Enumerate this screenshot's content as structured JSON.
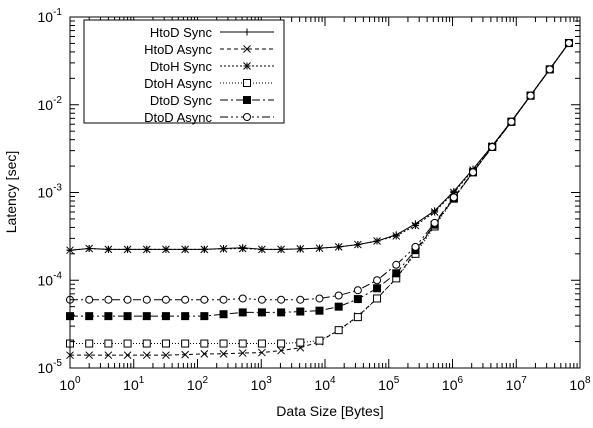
{
  "chart_data": {
    "type": "line",
    "xlabel": "Data Size [Bytes]",
    "ylabel": "Latency [sec]",
    "x_scale": "log",
    "y_scale": "log",
    "xlim": [
      1,
      100000000
    ],
    "ylim": [
      1e-05,
      0.1
    ],
    "grid": false,
    "legend_position": "top-left",
    "x_ticks": [
      {
        "value": 1,
        "base": "10",
        "exp": "0"
      },
      {
        "value": 10,
        "base": "10",
        "exp": "1"
      },
      {
        "value": 100,
        "base": "10",
        "exp": "2"
      },
      {
        "value": 1000,
        "base": "10",
        "exp": "3"
      },
      {
        "value": 10000,
        "base": "10",
        "exp": "4"
      },
      {
        "value": 100000,
        "base": "10",
        "exp": "5"
      },
      {
        "value": 1000000,
        "base": "10",
        "exp": "6"
      },
      {
        "value": 10000000,
        "base": "10",
        "exp": "7"
      },
      {
        "value": 100000000,
        "base": "10",
        "exp": "8"
      }
    ],
    "y_ticks": [
      {
        "value": 1e-05,
        "base": "10",
        "exp": "-5"
      },
      {
        "value": 0.0001,
        "base": "10",
        "exp": "-4"
      },
      {
        "value": 0.001,
        "base": "10",
        "exp": "-3"
      },
      {
        "value": 0.01,
        "base": "10",
        "exp": "-2"
      },
      {
        "value": 0.1,
        "base": "10",
        "exp": "-1"
      }
    ],
    "x": [
      1,
      2,
      4,
      8,
      16,
      32,
      64,
      128,
      256,
      512,
      1024,
      2048,
      4096,
      8192,
      16384,
      32768,
      65536,
      131072,
      262144,
      524288,
      1048576,
      2097152,
      4194304,
      8388608,
      16777216,
      33554432,
      67108864
    ],
    "series": [
      {
        "name": "HtoD Sync",
        "marker": "plus",
        "dash": "",
        "values": [
          0.00022,
          0.00023,
          0.000225,
          0.000225,
          0.000225,
          0.000225,
          0.000225,
          0.000225,
          0.00023,
          0.000235,
          0.000225,
          0.000225,
          0.000228,
          0.000232,
          0.00024,
          0.000255,
          0.00028,
          0.00033,
          0.00044,
          0.00062,
          0.00103,
          0.00185,
          0.0034,
          0.0065,
          0.0128,
          0.0255,
          0.051
        ]
      },
      {
        "name": "HtoD Async",
        "marker": "cross",
        "dash": "4,3",
        "values": [
          1.4e-05,
          1.4e-05,
          1.4e-05,
          1.4e-05,
          1.4e-05,
          1.4e-05,
          1.42e-05,
          1.45e-05,
          1.45e-05,
          1.48e-05,
          1.5e-05,
          1.58e-05,
          1.7e-05,
          2e-05,
          2.7e-05,
          3.9e-05,
          6.2e-05,
          0.000105,
          0.00021,
          0.00043,
          0.00087,
          0.0017,
          0.0033,
          0.0064,
          0.0127,
          0.0253,
          0.0505
        ]
      },
      {
        "name": "DtoH Sync",
        "marker": "star",
        "dash": "2,2",
        "values": [
          0.00022,
          0.00023,
          0.000225,
          0.000225,
          0.000225,
          0.000225,
          0.000225,
          0.000225,
          0.000228,
          0.00023,
          0.000225,
          0.000225,
          0.000228,
          0.000232,
          0.00024,
          0.000255,
          0.00028,
          0.00032,
          0.00042,
          0.0006,
          0.001,
          0.0018,
          0.0034,
          0.0065,
          0.0128,
          0.0255,
          0.051
        ]
      },
      {
        "name": "DtoH Async",
        "marker": "square-open",
        "dash": "1,2",
        "values": [
          1.9e-05,
          1.9e-05,
          1.9e-05,
          1.9e-05,
          1.9e-05,
          1.9e-05,
          1.9e-05,
          1.9e-05,
          1.9e-05,
          1.9e-05,
          1.9e-05,
          1.9e-05,
          1.95e-05,
          2.05e-05,
          2.7e-05,
          3.8e-05,
          6.2e-05,
          0.000105,
          0.0002,
          0.00041,
          0.00085,
          0.0017,
          0.0033,
          0.0064,
          0.0127,
          0.0253,
          0.0505
        ]
      },
      {
        "name": "DtoD Sync",
        "marker": "square-filled",
        "dash": "8,3,2,3",
        "values": [
          3.9e-05,
          3.9e-05,
          3.9e-05,
          3.9e-05,
          3.9e-05,
          3.9e-05,
          3.9e-05,
          3.9e-05,
          4.1e-05,
          4.3e-05,
          4.3e-05,
          4.3e-05,
          4.4e-05,
          4.5e-05,
          5e-05,
          6.1e-05,
          8.1e-05,
          0.00012,
          0.00022,
          0.00043,
          0.00086,
          0.0017,
          0.0033,
          0.0064,
          0.0127,
          0.0253,
          0.0505
        ]
      },
      {
        "name": "DtoD Async",
        "marker": "circle-open",
        "dash": "8,3,2,3,2,3",
        "values": [
          6e-05,
          6e-05,
          6e-05,
          6e-05,
          6e-05,
          6e-05,
          6e-05,
          6e-05,
          6e-05,
          6.2e-05,
          6e-05,
          6e-05,
          6e-05,
          6.2e-05,
          6.7e-05,
          7.7e-05,
          0.0001,
          0.00015,
          0.00024,
          0.00045,
          0.00088,
          0.0017,
          0.0033,
          0.0064,
          0.0127,
          0.0253,
          0.0505
        ]
      }
    ]
  }
}
